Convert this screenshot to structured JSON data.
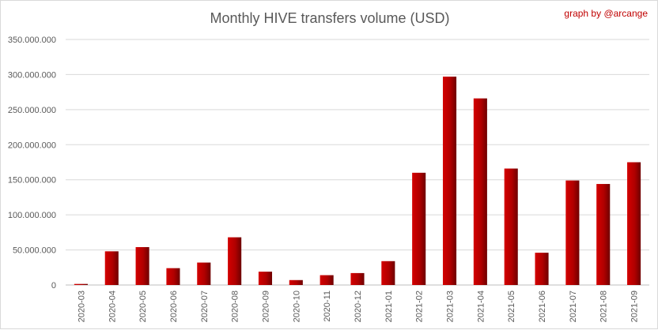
{
  "chart_data": {
    "type": "bar",
    "title": "Monthly HIVE transfers volume (USD)",
    "credit": "graph by @arcange",
    "xlabel": "",
    "ylabel": "",
    "ylim": [
      0,
      350000000
    ],
    "yticks": [
      0,
      50000000,
      100000000,
      150000000,
      200000000,
      250000000,
      300000000,
      350000000
    ],
    "ytick_labels": [
      "0",
      "50.000.000",
      "100.000.000",
      "150.000.000",
      "200.000.000",
      "250.000.000",
      "300.000.000",
      "350.000.000"
    ],
    "grid": true,
    "legend": "none",
    "bar_color": "#c00000",
    "categories": [
      "2020-03",
      "2020-04",
      "2020-05",
      "2020-06",
      "2020-07",
      "2020-08",
      "2020-09",
      "2020-10",
      "2020-11",
      "2020-12",
      "2021-01",
      "2021-02",
      "2021-03",
      "2021-04",
      "2021-05",
      "2021-06",
      "2021-07",
      "2021-08",
      "2021-09"
    ],
    "values": [
      1500000,
      48000000,
      54000000,
      24000000,
      32000000,
      68000000,
      19000000,
      7000000,
      14000000,
      17000000,
      34000000,
      160000000,
      297000000,
      266000000,
      166000000,
      46000000,
      149000000,
      144000000,
      175000000
    ]
  }
}
